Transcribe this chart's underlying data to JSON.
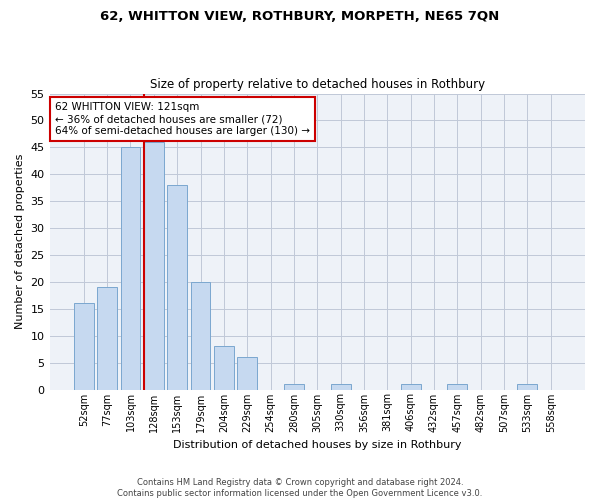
{
  "title_line1": "62, WHITTON VIEW, ROTHBURY, MORPETH, NE65 7QN",
  "title_line2": "Size of property relative to detached houses in Rothbury",
  "xlabel": "Distribution of detached houses by size in Rothbury",
  "ylabel": "Number of detached properties",
  "bar_labels": [
    "52sqm",
    "77sqm",
    "103sqm",
    "128sqm",
    "153sqm",
    "179sqm",
    "204sqm",
    "229sqm",
    "254sqm",
    "280sqm",
    "305sqm",
    "330sqm",
    "356sqm",
    "381sqm",
    "406sqm",
    "432sqm",
    "457sqm",
    "482sqm",
    "507sqm",
    "533sqm",
    "558sqm"
  ],
  "bar_values": [
    16,
    19,
    45,
    46,
    38,
    20,
    8,
    6,
    0,
    1,
    0,
    1,
    0,
    0,
    1,
    0,
    1,
    0,
    0,
    1,
    0
  ],
  "bar_color": "#c6d9f0",
  "bar_edge_color": "#7ba7cf",
  "grid_color": "#c0c8d8",
  "background_color": "#eef2f8",
  "property_line_x": 2.575,
  "annotation_text": "62 WHITTON VIEW: 121sqm\n← 36% of detached houses are smaller (72)\n64% of semi-detached houses are larger (130) →",
  "annotation_box_color": "#ffffff",
  "annotation_box_edge": "#cc0000",
  "property_line_color": "#cc0000",
  "ylim": [
    0,
    55
  ],
  "yticks": [
    0,
    5,
    10,
    15,
    20,
    25,
    30,
    35,
    40,
    45,
    50,
    55
  ],
  "footer_line1": "Contains HM Land Registry data © Crown copyright and database right 2024.",
  "footer_line2": "Contains public sector information licensed under the Open Government Licence v3.0."
}
